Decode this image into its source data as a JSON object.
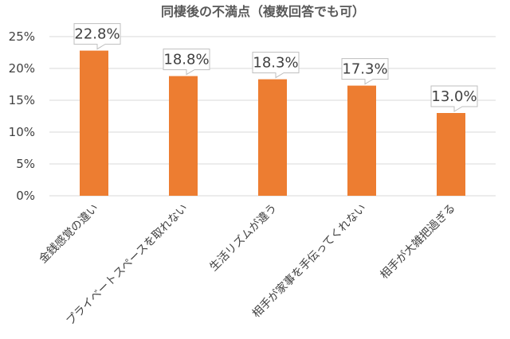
{
  "chart_data": {
    "type": "bar",
    "title": "同棲後の不満点（複数回答でも可）",
    "categories": [
      "金銭感覚の違い",
      "プライベートスペースを取れない",
      "生活リズムが違う",
      "相手が家事を手伝ってくれない",
      "相手が大雑把過ぎる"
    ],
    "values": [
      22.8,
      18.8,
      18.3,
      17.3,
      13.0
    ],
    "data_labels": [
      "22.8%",
      "18.8%",
      "18.3%",
      "17.3%",
      "13.0%"
    ],
    "y_ticks": [
      "0%",
      "5%",
      "10%",
      "15%",
      "20%",
      "25%"
    ],
    "ylim": [
      0,
      25
    ],
    "xlabel": "",
    "ylabel": "",
    "grid": true,
    "legend": "none",
    "colors": {
      "bar": "#ED7D31",
      "grid": "#D9D9D9",
      "label_box_border": "#BFBFBF",
      "text": "#404040"
    }
  }
}
